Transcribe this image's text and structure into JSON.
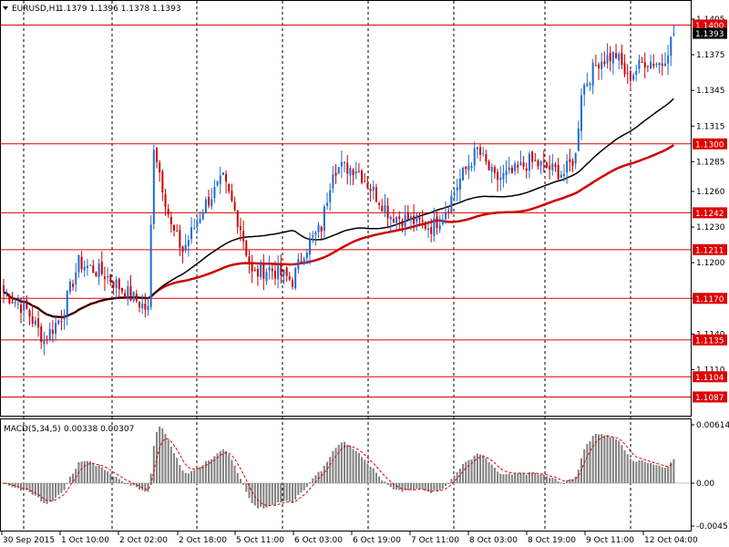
{
  "header": {
    "title": "EURUSD,H1",
    "ohlc": "1.1379 1.1396 1.1378 1.1393"
  },
  "macd": {
    "title": "MACD(5,34,5)",
    "values": "0.00338 0.00307",
    "scale_labels": [
      "0.00614",
      "0.00",
      "-0.00451"
    ]
  },
  "price_axis": {
    "ticks": [
      "1.1405",
      "1.1375",
      "1.1345",
      "1.1315",
      "1.1285",
      "1.1260",
      "1.1230",
      "1.1200",
      "1.1170",
      "1.1140",
      "1.1110"
    ]
  },
  "levels": [
    "1.1400",
    "1.1393",
    "1.1300",
    "1.1242",
    "1.1211",
    "1.1170",
    "1.1135",
    "1.1104",
    "1.1087"
  ],
  "time_axis": [
    "30 Sep 2015",
    "1 Oct 10:00",
    "2 Oct 02:00",
    "2 Oct 18:00",
    "5 Oct 11:00",
    "6 Oct 03:00",
    "6 Oct 19:00",
    "7 Oct 11:00",
    "8 Oct 03:00",
    "8 Oct 19:00",
    "9 Oct 11:00",
    "12 Oct 04:00"
  ],
  "colors": {
    "level_line": "#dd0000",
    "level_badge": "#dd0000",
    "current_price_badge": "#000000",
    "bull": "#1e6bd6",
    "bear": "#cc0000",
    "ma_slow": "#cc0000",
    "ma_fast": "#000000",
    "macd_hist": "#808080",
    "macd_signal": "#dd0000"
  },
  "chart_data": {
    "type": "candlestick",
    "symbol": "EURUSD",
    "timeframe": "H1",
    "ylim": [
      1.1072,
      1.1418
    ],
    "macd_ylim": [
      -0.00451,
      0.00614
    ],
    "anchors": [
      [
        0,
        1.1175
      ],
      [
        8,
        1.116
      ],
      [
        14,
        1.1135
      ],
      [
        20,
        1.1155
      ],
      [
        26,
        1.12
      ],
      [
        35,
        1.119
      ],
      [
        45,
        1.117
      ],
      [
        50,
        1.116
      ],
      [
        52,
        1.13
      ],
      [
        58,
        1.123
      ],
      [
        62,
        1.121
      ],
      [
        70,
        1.125
      ],
      [
        76,
        1.127
      ],
      [
        82,
        1.123
      ],
      [
        86,
        1.119
      ],
      [
        92,
        1.1195
      ],
      [
        100,
        1.1185
      ],
      [
        104,
        1.121
      ],
      [
        110,
        1.123
      ],
      [
        114,
        1.128
      ],
      [
        122,
        1.128
      ],
      [
        128,
        1.126
      ],
      [
        134,
        1.124
      ],
      [
        142,
        1.1235
      ],
      [
        148,
        1.123
      ],
      [
        152,
        1.124
      ],
      [
        158,
        1.127
      ],
      [
        164,
        1.1295
      ],
      [
        170,
        1.127
      ],
      [
        176,
        1.1275
      ],
      [
        182,
        1.1285
      ],
      [
        188,
        1.128
      ],
      [
        194,
        1.1275
      ],
      [
        198,
        1.129
      ],
      [
        200,
        1.1345
      ],
      [
        206,
        1.137
      ],
      [
        212,
        1.1375
      ],
      [
        216,
        1.1355
      ],
      [
        222,
        1.137
      ],
      [
        228,
        1.1368
      ],
      [
        232,
        1.1393
      ]
    ],
    "candle_count": 233,
    "current_price": 1.1393
  }
}
